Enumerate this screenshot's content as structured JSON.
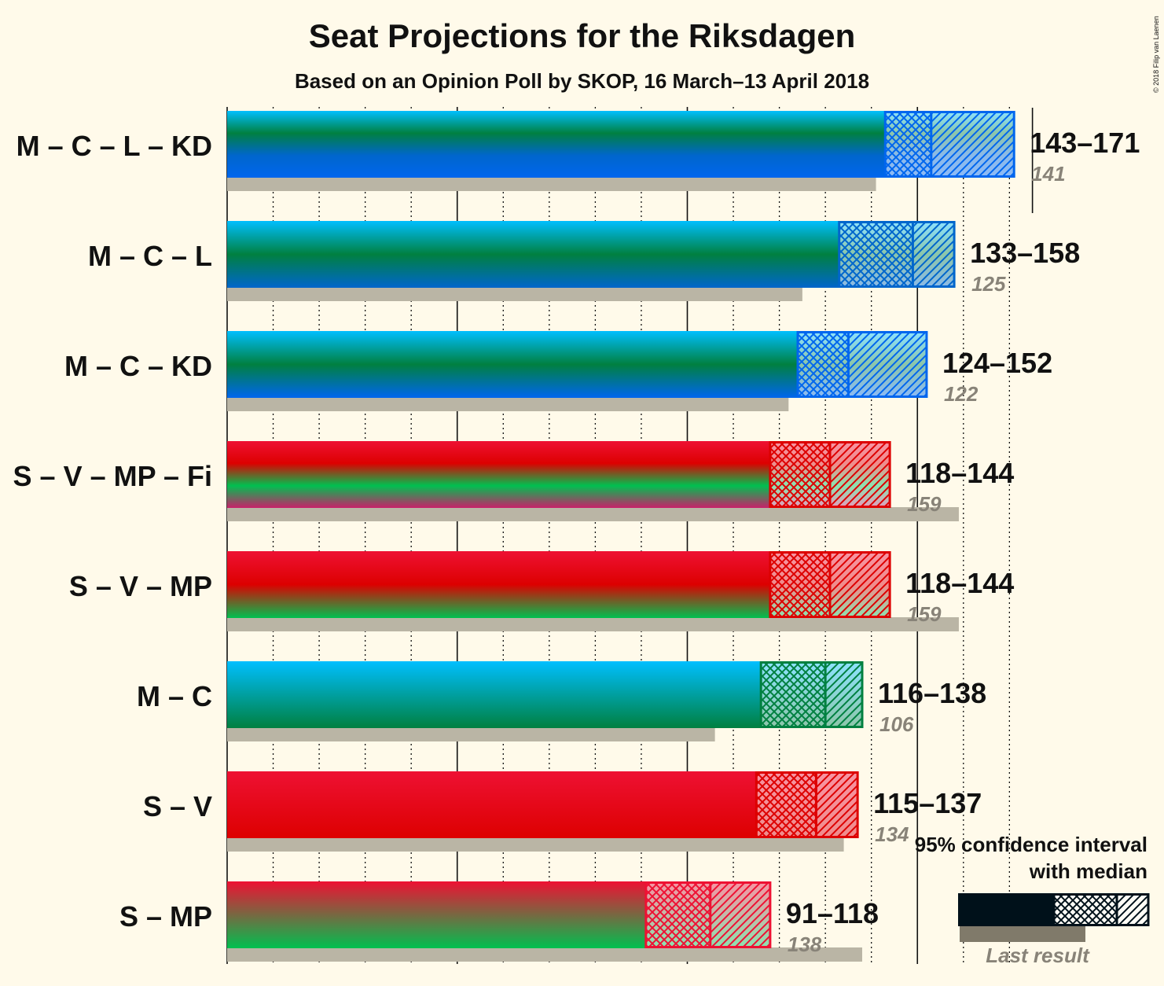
{
  "title": "Seat Projections for the Riksdagen",
  "subtitle": "Based on an Opinion Poll by SKOP, 16 March–13 April 2018",
  "copyright": "© 2018 Filip van Laenen",
  "legend": {
    "ci_label_line1": "95% confidence interval",
    "ci_label_line2": "with median",
    "last_result_label": "Last result"
  },
  "chart_data": {
    "type": "bar",
    "orientation": "horizontal",
    "majority_line": 175,
    "xlim": [
      0,
      171
    ],
    "x_gridlines_every": 10,
    "categories": [
      "M – C – L – KD",
      "M – C – L",
      "M – C – KD",
      "S – V – MP – Fi",
      "S – V – MP",
      "M – C",
      "S – V",
      "S – MP"
    ],
    "series": [
      {
        "name": "M – C – L – KD",
        "low": 143,
        "median": 153,
        "high": 171,
        "last_result": 141,
        "range_label": "143–171",
        "last_label": "141",
        "colors": [
          "#00bfff",
          "#008040",
          "#0066cc",
          "#0066ee"
        ],
        "edge": "#0066ee"
      },
      {
        "name": "M – C – L",
        "low": 133,
        "median": 149,
        "high": 158,
        "last_result": 125,
        "range_label": "133–158",
        "last_label": "125",
        "colors": [
          "#00bfff",
          "#008040",
          "#0066cc"
        ],
        "edge": "#0066cc"
      },
      {
        "name": "M – C – KD",
        "low": 124,
        "median": 135,
        "high": 152,
        "last_result": 122,
        "range_label": "124–152",
        "last_label": "122",
        "colors": [
          "#00bfff",
          "#008040",
          "#0066ee"
        ],
        "edge": "#0066ee"
      },
      {
        "name": "S – V – MP – Fi",
        "low": 118,
        "median": 131,
        "high": 144,
        "last_result": 159,
        "range_label": "118–144",
        "last_label": "159",
        "colors": [
          "#ee1133",
          "#dd0000",
          "#00c050",
          "#c8206a"
        ],
        "edge": "#dd0000"
      },
      {
        "name": "S – V – MP",
        "low": 118,
        "median": 131,
        "high": 144,
        "last_result": 159,
        "range_label": "118–144",
        "last_label": "159",
        "colors": [
          "#ee1133",
          "#dd0000",
          "#00c050"
        ],
        "edge": "#dd0000"
      },
      {
        "name": "M – C",
        "low": 116,
        "median": 130,
        "high": 138,
        "last_result": 106,
        "range_label": "116–138",
        "last_label": "106",
        "colors": [
          "#00bfff",
          "#008040"
        ],
        "edge": "#008040"
      },
      {
        "name": "S – V",
        "low": 115,
        "median": 128,
        "high": 137,
        "last_result": 134,
        "range_label": "115–137",
        "last_label": "134",
        "colors": [
          "#ee1133",
          "#dd0000"
        ],
        "edge": "#dd0000"
      },
      {
        "name": "S – MP",
        "low": 91,
        "median": 105,
        "high": 118,
        "last_result": 138,
        "range_label": "91–118",
        "last_label": "138",
        "colors": [
          "#ee1133",
          "#00c050"
        ],
        "edge": "#ee1133"
      }
    ],
    "colors": {
      "background": "#fffaea",
      "last_result": "#bab5a5",
      "legend_dark": "#00111a",
      "legend_last": "#807a6a"
    }
  }
}
